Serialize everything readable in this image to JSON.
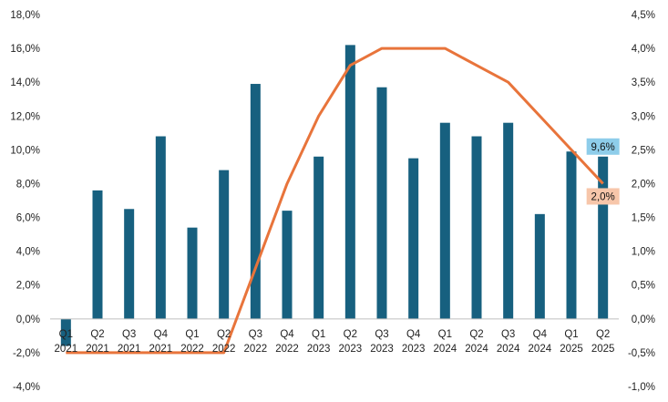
{
  "chart_data": {
    "type": "bar",
    "categories": [
      [
        "Q1",
        "2021"
      ],
      [
        "Q2",
        "2021"
      ],
      [
        "Q3",
        "2021"
      ],
      [
        "Q4",
        "2021"
      ],
      [
        "Q1",
        "2022"
      ],
      [
        "Q2",
        "2022"
      ],
      [
        "Q3",
        "2022"
      ],
      [
        "Q4",
        "2022"
      ],
      [
        "Q1",
        "2023"
      ],
      [
        "Q2",
        "2023"
      ],
      [
        "Q3",
        "2023"
      ],
      [
        "Q4",
        "2023"
      ],
      [
        "Q1",
        "2024"
      ],
      [
        "Q2",
        "2024"
      ],
      [
        "Q3",
        "2024"
      ],
      [
        "Q4",
        "2024"
      ],
      [
        "Q1",
        "2025"
      ],
      [
        "Q2",
        "2025"
      ]
    ],
    "series": [
      {
        "type": "bar",
        "axis": "left",
        "color": "#17607f",
        "values": [
          -1.6,
          7.6,
          6.5,
          10.8,
          5.4,
          8.8,
          13.9,
          6.4,
          9.6,
          16.2,
          13.7,
          9.5,
          11.6,
          10.8,
          11.6,
          6.2,
          9.9,
          9.6
        ]
      },
      {
        "type": "line",
        "axis": "right",
        "color": "#e8743b",
        "values": [
          -0.5,
          -0.5,
          -0.5,
          -0.5,
          -0.5,
          -0.5,
          0.75,
          2.0,
          3.0,
          3.75,
          4.0,
          4.0,
          4.0,
          3.75,
          3.5,
          3.0,
          2.5,
          2.0
        ]
      }
    ],
    "left_axis": {
      "range": [
        -4,
        18
      ],
      "ticks": [
        "-4,0%",
        "-2,0%",
        "0,0%",
        "2,0%",
        "4,0%",
        "6,0%",
        "8,0%",
        "10,0%",
        "12,0%",
        "14,0%",
        "16,0%",
        "18,0%"
      ]
    },
    "right_axis": {
      "range": [
        -1,
        4.5
      ],
      "ticks": [
        "-1,0%",
        "-0,5%",
        "0,0%",
        "0,5%",
        "1,0%",
        "1,5%",
        "2,0%",
        "2,5%",
        "3,0%",
        "3,5%",
        "4,0%",
        "4,5%"
      ]
    },
    "annotations": [
      {
        "text": "9,6%",
        "series": 0,
        "index": 17,
        "bg": "#8ecdea"
      },
      {
        "text": "2,0%",
        "series": 1,
        "index": 17,
        "bg": "#f7c6aa"
      }
    ],
    "grid": false,
    "legend": "none"
  }
}
